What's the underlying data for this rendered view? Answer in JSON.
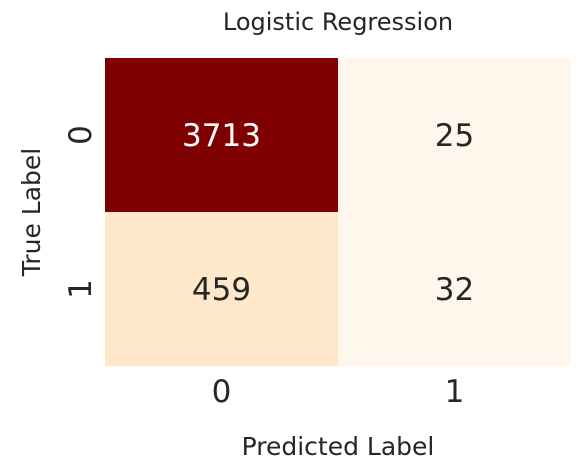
{
  "chart_data": {
    "type": "heatmap",
    "title": "Logistic Regression",
    "xlabel": "Predicted Label",
    "ylabel": "True Label",
    "x_categories": [
      "0",
      "1"
    ],
    "y_categories": [
      "0",
      "1"
    ],
    "values": [
      [
        3713,
        25
      ],
      [
        459,
        32
      ]
    ],
    "colormap": "OrRd",
    "colorbar": false,
    "colors": {
      "max": "#7f0000",
      "low": "#fff5e8",
      "mid_low": "#fee7c8",
      "text_dark": "#262626",
      "text_light": "#ffffff"
    }
  }
}
